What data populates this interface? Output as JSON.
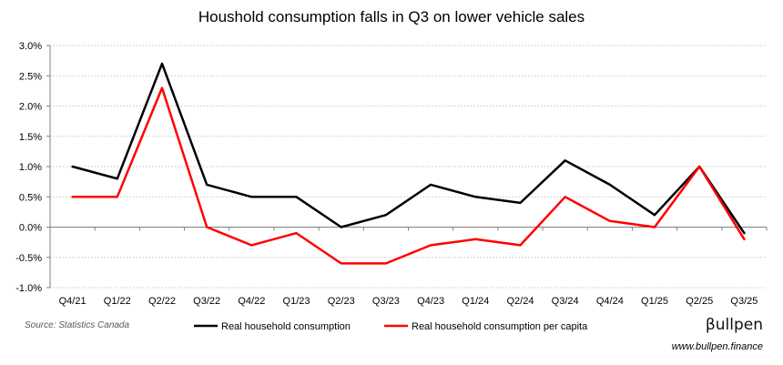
{
  "chart_data": {
    "type": "line",
    "title": "Houshold consumption falls in Q3 on lower vehicle sales",
    "categories": [
      "Q4/21",
      "Q1/22",
      "Q2/22",
      "Q3/22",
      "Q4/22",
      "Q1/23",
      "Q2/23",
      "Q3/23",
      "Q4/23",
      "Q1/24",
      "Q2/24",
      "Q3/24",
      "Q4/24",
      "Q1/25",
      "Q2/25",
      "Q3/25"
    ],
    "y_tick_labels": [
      "3.0%",
      "2.5%",
      "2.0%",
      "1.5%",
      "1.0%",
      "0.5%",
      "0.0%",
      "-0.5%",
      "-1.0%"
    ],
    "ylim": [
      -1.0,
      3.0
    ],
    "ystep": 0.5,
    "grid": "horizontal dotted",
    "legend_position": "bottom",
    "series": [
      {
        "name": "Real household consumption",
        "color": "#000000",
        "values": [
          1.0,
          0.8,
          2.7,
          0.7,
          0.5,
          0.5,
          0.0,
          0.2,
          0.7,
          0.5,
          0.4,
          1.1,
          0.7,
          0.2,
          1.0,
          -0.1
        ]
      },
      {
        "name": "Real household consumption per capita",
        "color": "#ff0000",
        "values": [
          0.5,
          0.5,
          2.3,
          0.0,
          -0.3,
          -0.1,
          -0.6,
          -0.6,
          -0.3,
          -0.2,
          -0.3,
          0.5,
          0.1,
          0.0,
          1.0,
          -0.2
        ]
      }
    ],
    "source": "Source: Statistics Canada"
  },
  "branding": {
    "logo_text": "βullpen",
    "website": "www.bullpen.finance"
  }
}
